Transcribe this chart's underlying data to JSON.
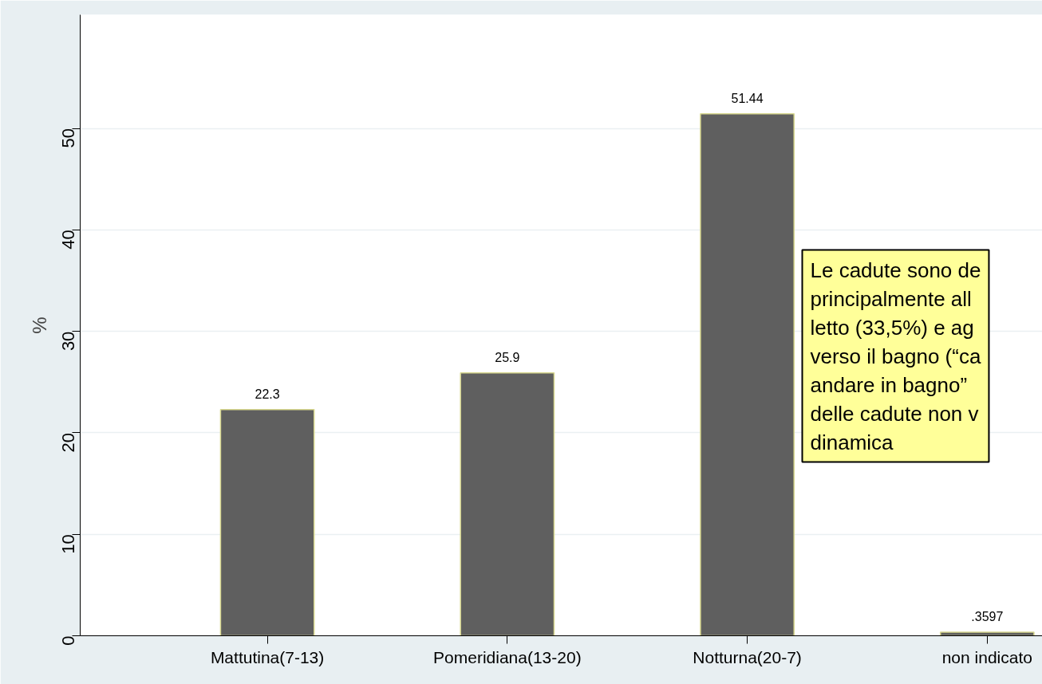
{
  "chart_data": {
    "type": "bar",
    "ylabel": "%",
    "categories": [
      "Mattutina(7-13)",
      "Pomeridiana(13-20)",
      "Notturna(20-7)",
      "non indicato"
    ],
    "values": [
      22.3,
      25.9,
      51.44,
      0.3597
    ],
    "value_labels": [
      "22.3",
      "25.9",
      "51.44",
      ".3597"
    ],
    "color": "#5f5f5f",
    "ylim": [
      0,
      61.2
    ],
    "yticks": [
      0,
      10,
      20,
      30,
      40,
      50
    ],
    "grid": "y",
    "annotations": [
      "Le cadute sono de\nprincipalmente all\nletto (33,5%) e ag\nverso il bagno (“ca\nandare in bagno”\ndelle cadute non v\ndinamica"
    ]
  }
}
